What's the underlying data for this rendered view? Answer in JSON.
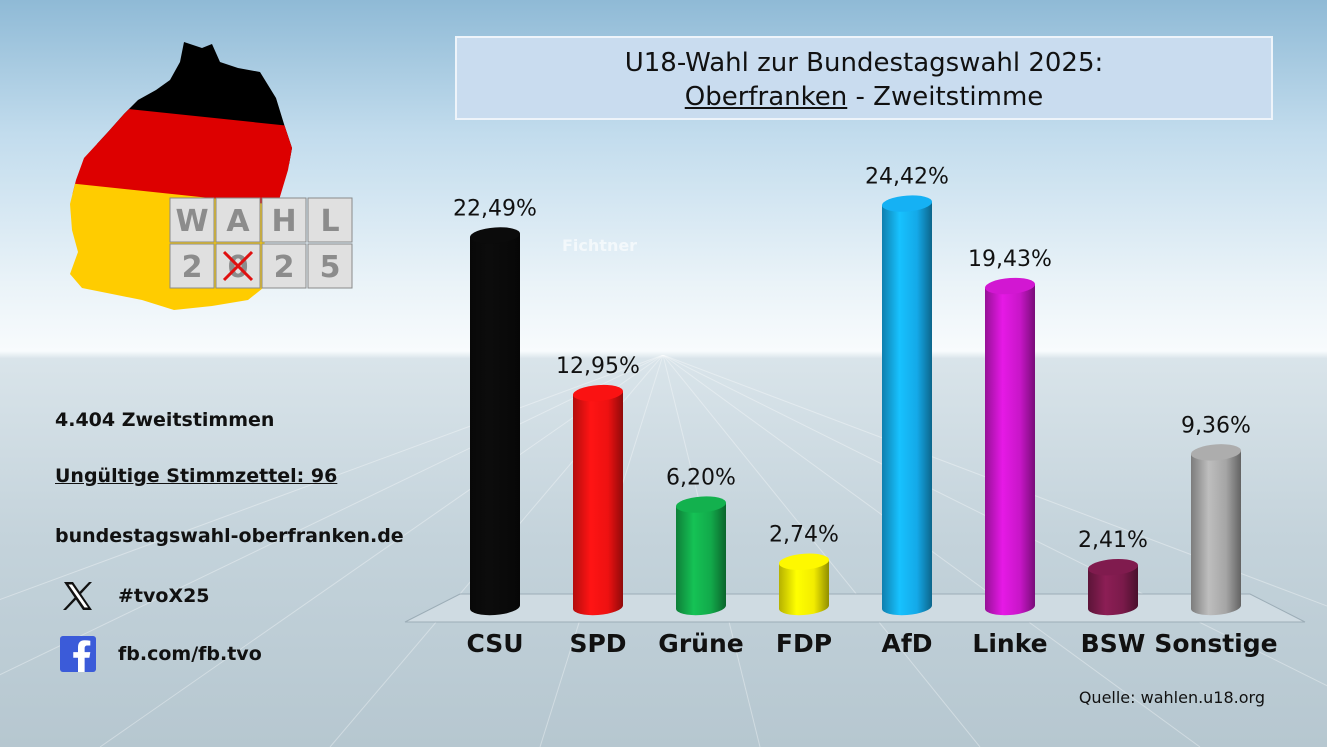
{
  "title": {
    "line1": "U18-Wahl zur Bundestagswahl 2025:",
    "line2_underlined": "Oberfranken",
    "line2_rest": " - Zweitstimme"
  },
  "logo": {
    "top": [
      "W",
      "A",
      "H",
      "L"
    ],
    "bottom": [
      "2",
      "0",
      "2",
      "5"
    ],
    "flag_colors": [
      "#000000",
      "#dd0000",
      "#ffcc00"
    ]
  },
  "info": {
    "votes": "4.404 Zweitstimmen",
    "invalid": "Ungültige Stimmzettel: 96",
    "website": "bundestagswahl-oberfranken.de",
    "x_handle": "#tvoX25",
    "x_icon": "x-icon",
    "facebook": "fb.com/fb.tvo",
    "facebook_icon": "facebook-icon"
  },
  "watermark": "Fichtner",
  "source": "Quelle: wahlen.u18.org",
  "chart_data": {
    "type": "bar",
    "title": "U18-Wahl zur Bundestagswahl 2025: Oberfranken - Zweitstimme",
    "categories": [
      "CSU",
      "SPD",
      "Grüne",
      "FDP",
      "AfD",
      "Linke",
      "BSW",
      "Sonstige"
    ],
    "values": [
      22.49,
      12.95,
      6.2,
      2.74,
      24.42,
      19.43,
      2.41,
      9.36
    ],
    "labels": [
      "22,49%",
      "12,95%",
      "6,20%",
      "2,74%",
      "24,42%",
      "19,43%",
      "2,41%",
      "9,36%"
    ],
    "colors": [
      "#0a0a0a",
      "#ee1111",
      "#12a94a",
      "#f2ec00",
      "#14a9e8",
      "#c816c8",
      "#7a1a4a",
      "#a5a5a5"
    ],
    "unit": "%",
    "ylim": [
      0,
      25
    ],
    "grid": false,
    "legend": "none"
  }
}
